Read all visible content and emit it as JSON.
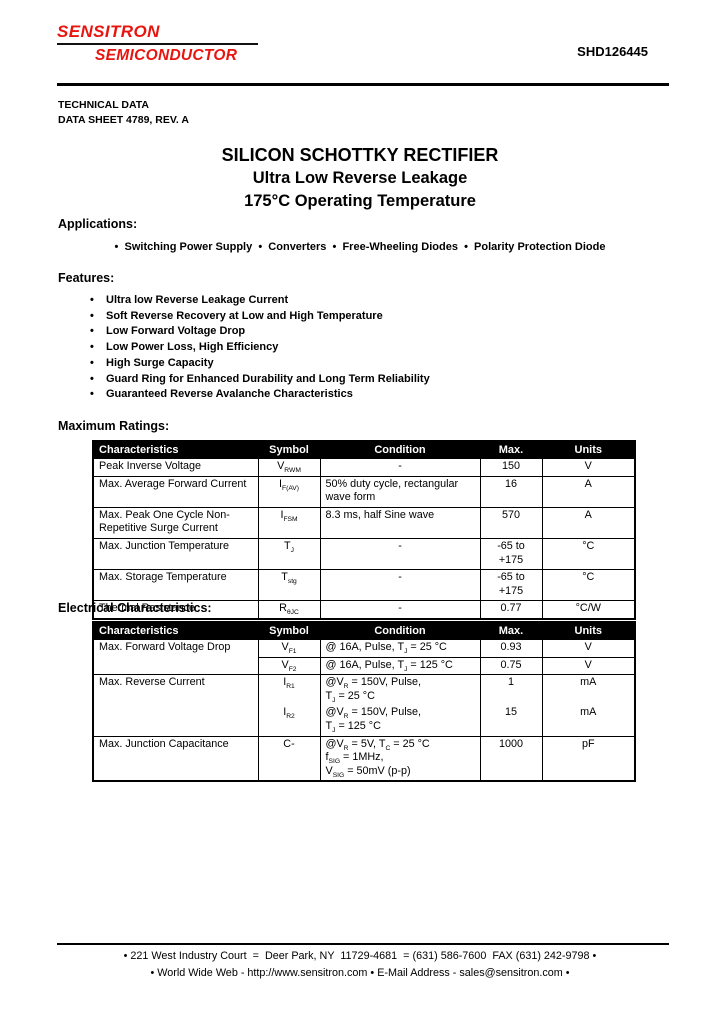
{
  "header": {
    "logo_line1": "SENSITRON",
    "logo_line2": "SEMICONDUCTOR",
    "part_number": "SHD126445",
    "doc_line1": "TECHNICAL DATA",
    "doc_line2": "DATA SHEET 4789, REV. A"
  },
  "title": {
    "line1": "SILICON SCHOTTKY RECTIFIER",
    "line2": "Ultra Low Reverse Leakage",
    "line3": "175°C Operating Temperature"
  },
  "applications": {
    "heading": "Applications:",
    "items": [
      "Switching Power Supply",
      "Converters",
      "Free-Wheeling Diodes",
      "Polarity Protection Diode"
    ]
  },
  "features": {
    "heading": "Features:",
    "bullet": "•",
    "items": [
      "Ultra low Reverse Leakage Current",
      "Soft Reverse Recovery at Low and High Temperature",
      "Low Forward Voltage Drop",
      "Low Power Loss, High Efficiency",
      "High Surge Capacity",
      "Guard Ring for Enhanced Durability and Long Term Reliability",
      "Guaranteed Reverse Avalanche Characteristics"
    ]
  },
  "maximum_ratings": {
    "heading": "Maximum Ratings:",
    "columns": [
      "Characteristics",
      "Symbol",
      "Condition",
      "Max.",
      "Units"
    ],
    "rows": [
      {
        "char": "Peak Inverse Voltage",
        "span": 1,
        "sym": "V~RWM~",
        "cond": [
          "-"
        ],
        "cond_center": true,
        "max": "150",
        "units": "V"
      },
      {
        "char": "Max. Average Forward Current",
        "span": 1,
        "sym": "I~F(AV)~",
        "cond": [
          "50% duty cycle, rectangular",
          "wave form"
        ],
        "max": "16",
        "units": "A"
      },
      {
        "char": "Max. Peak One Cycle Non-Repetitive Surge Current",
        "span": 1,
        "sym": "I~FSM~",
        "cond": [
          "8.3 ms, half Sine wave"
        ],
        "max": "570",
        "units": "A"
      },
      {
        "char": "Max. Junction Temperature",
        "span": 1,
        "sym": "T~J~",
        "cond": [
          "-"
        ],
        "cond_center": true,
        "max": "-65 to +175",
        "units": "°C"
      },
      {
        "char": "Max. Storage Temperature",
        "span": 1,
        "sym": "T~stg~",
        "cond": [
          "-"
        ],
        "cond_center": true,
        "max": "-65 to +175",
        "units": "°C"
      },
      {
        "char": "Thermal Resistance",
        "span": 1,
        "sym": "R~θJC~",
        "cond": [
          "-"
        ],
        "cond_center": true,
        "max": "0.77",
        "units": "°C/W"
      }
    ]
  },
  "electrical_characteristics": {
    "heading": "Electrical Characteristics:",
    "columns": [
      "Characteristics",
      "Symbol",
      "Condition",
      "Max.",
      "Units"
    ],
    "rows": [
      {
        "char": "Max. Forward Voltage Drop",
        "span": 2,
        "sym": "V~F1~",
        "cond": [
          "@ 16A, Pulse, T~J~ = 25 °C"
        ],
        "max": "0.93",
        "units": "V"
      },
      {
        "sym": "V~F2~",
        "cond": [
          "@ 16A, Pulse, T~J~ = 125 °C"
        ],
        "max": "0.75",
        "units": "V"
      },
      {
        "char": "Max. Reverse Current",
        "span": 2,
        "sym": "I~R1~",
        "cond": [
          "@V~R~ = 150V, Pulse,",
          "T~J~ = 25 °C"
        ],
        "max": "1",
        "units": "mA",
        "open_bottom": true
      },
      {
        "sym": "I~R2~",
        "cond": [
          "@V~R~ = 150V, Pulse,",
          "T~J~ = 125 °C"
        ],
        "max": "15",
        "units": "mA",
        "open_top": true
      },
      {
        "char": "Max. Junction Capacitance",
        "span": 1,
        "sym": "C-",
        "cond": [
          "@V~R~ = 5V, T~C~ = 25 °C",
          "f~SIG~ = 1MHz,",
          "V~SIG~ = 50mV (p-p)"
        ],
        "max": "1000",
        "units": "pF"
      }
    ]
  },
  "footer": {
    "line1": "• 221 West Industry Court  =  Deer Park, NY  11729-4681  = (631) 586-7600  FAX (631) 242-9798 •",
    "line2": "• World Wide Web - http://www.sensitron.com • E-Mail Address - sales@sensitron.com •"
  },
  "colors": {
    "brand_red": "#e8150f",
    "table_header_bg": "#000000",
    "table_header_text": "#ffffff"
  }
}
